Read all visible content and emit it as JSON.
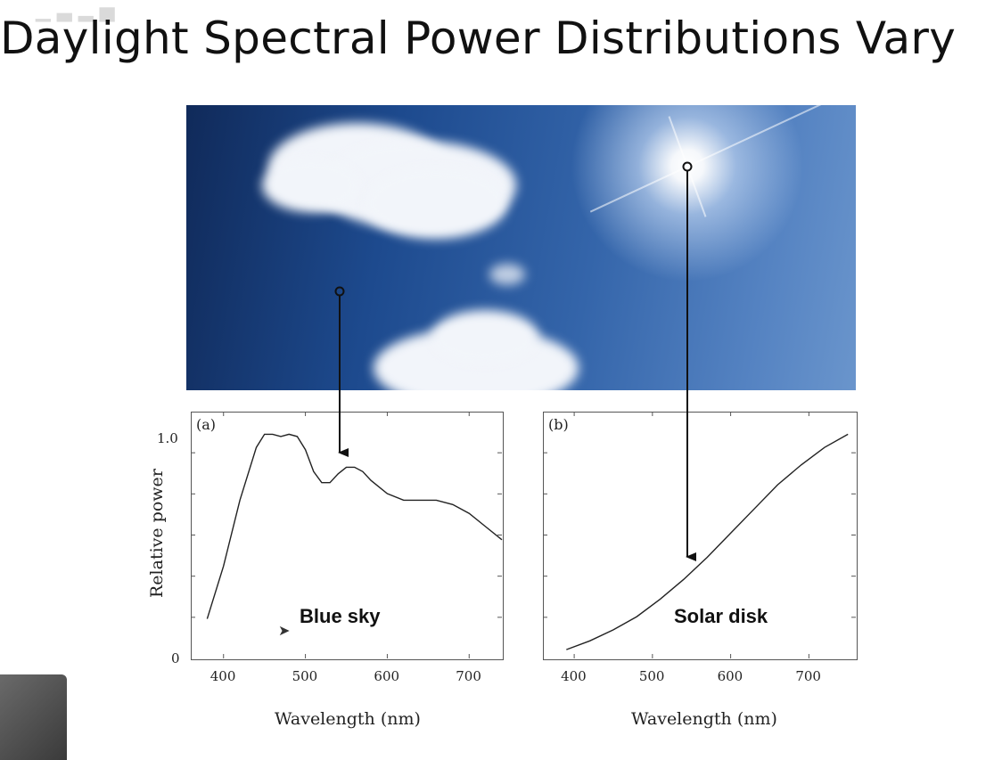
{
  "slide": {
    "title": "Daylight Spectral Power Distributions Vary",
    "cursor_icon": "arrow-cursor-icon"
  },
  "chart_data": [
    {
      "type": "line",
      "panel": "(a)",
      "label": "Blue sky",
      "xlabel": "Wavelength (nm)",
      "ylabel": "Relative power",
      "xlim": [
        360,
        740
      ],
      "ylim": [
        0,
        1.05
      ],
      "xticks": [
        400,
        500,
        600,
        700
      ],
      "yticks": [
        {
          "value": 0,
          "label": "0"
        },
        {
          "value": 1.0,
          "label": "1.0"
        }
      ],
      "series": [
        {
          "color": "#222222",
          "x": [
            380,
            400,
            420,
            440,
            450,
            460,
            470,
            480,
            490,
            500,
            510,
            520,
            530,
            540,
            550,
            560,
            570,
            580,
            600,
            620,
            640,
            660,
            680,
            700,
            720,
            740
          ],
          "y": [
            0.18,
            0.42,
            0.72,
            0.96,
            1.02,
            1.02,
            1.01,
            1.02,
            1.01,
            0.95,
            0.85,
            0.8,
            0.8,
            0.84,
            0.87,
            0.87,
            0.85,
            0.81,
            0.75,
            0.72,
            0.72,
            0.72,
            0.7,
            0.66,
            0.6,
            0.54
          ]
        }
      ]
    },
    {
      "type": "line",
      "panel": "(b)",
      "label": "Solar disk",
      "xlabel": "Wavelength (nm)",
      "ylabel": "",
      "xlim": [
        360,
        760
      ],
      "ylim": [
        0,
        1.05
      ],
      "xticks": [
        400,
        500,
        600,
        700
      ],
      "yticks": [],
      "series": [
        {
          "color": "#222222",
          "x": [
            390,
            420,
            450,
            480,
            510,
            540,
            570,
            600,
            630,
            660,
            690,
            720,
            750
          ],
          "y": [
            0.04,
            0.08,
            0.13,
            0.19,
            0.27,
            0.36,
            0.46,
            0.57,
            0.68,
            0.79,
            0.88,
            0.96,
            1.02
          ]
        }
      ]
    }
  ]
}
